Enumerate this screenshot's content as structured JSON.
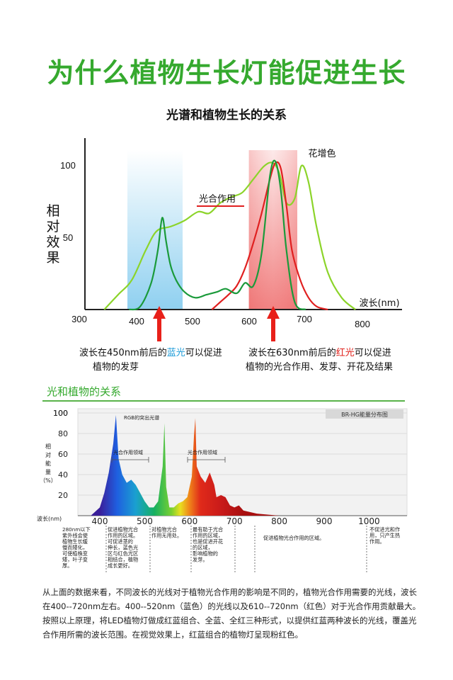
{
  "header": {
    "title": "为什么植物生长灯能促进生长",
    "chart_title": "光谱和植物生长的关系",
    "section_title": "光和植物的关系"
  },
  "chart_data": [
    {
      "type": "line",
      "title": "光谱和植物生长的关系",
      "ylabel": "相对效果",
      "xlabel": "波长(nm)",
      "x_ticks": [
        "300",
        "400",
        "500",
        "600",
        "700",
        "800"
      ],
      "y_ticks": [
        "50",
        "100"
      ],
      "xlim": [
        300,
        800
      ],
      "ylim": [
        0,
        110
      ],
      "shaded_bands": [
        {
          "name": "蓝光",
          "range": [
            400,
            500
          ],
          "color": "#8fd0f0"
        },
        {
          "name": "红光",
          "range": [
            620,
            700
          ],
          "color": "#f08080"
        }
      ],
      "series": [
        {
          "name": "光合作用",
          "color": "#e02020",
          "x": [
            530,
            545,
            560,
            575,
            590,
            605,
            620,
            635,
            645,
            655,
            665,
            675,
            690,
            705,
            720,
            740
          ],
          "y": [
            0,
            5,
            10,
            16,
            28,
            45,
            65,
            88,
            99,
            95,
            70,
            40,
            20,
            8,
            2,
            0
          ]
        },
        {
          "name": "花增色",
          "color": "#1a9a3a",
          "x": [
            380,
            400,
            420,
            432,
            440,
            447,
            455,
            465,
            480,
            500,
            520,
            540,
            555,
            575,
            590,
            605,
            620,
            635,
            645,
            655,
            665,
            680,
            700
          ],
          "y": [
            0,
            2,
            18,
            40,
            62,
            46,
            30,
            20,
            12,
            8,
            10,
            12,
            14,
            11,
            18,
            16,
            38,
            90,
            100,
            80,
            40,
            5,
            0
          ]
        }
      ],
      "extra_series": {
        "name": "",
        "color": "#8cd42a",
        "x": [
          335,
          360,
          385,
          410,
          430,
          455,
          480,
          505,
          525,
          545,
          565,
          585,
          605,
          625,
          640,
          652,
          665,
          680,
          692,
          705,
          720,
          740,
          765,
          790
        ],
        "y": [
          0,
          10,
          20,
          40,
          53,
          56,
          60,
          66,
          65,
          72,
          76,
          79,
          88,
          97,
          99,
          92,
          72,
          75,
          97,
          86,
          55,
          25,
          8,
          0
        ]
      },
      "annotations": [
        {
          "label": "光合作用"
        },
        {
          "label": "花增色"
        }
      ]
    },
    {
      "type": "area",
      "title": "BR-HG能量分布图",
      "ylabel": "相对能量(%)",
      "xlabel": "波长(nm)",
      "x_ticks": [
        "400",
        "500",
        "600",
        "700",
        "800",
        "900",
        "1000"
      ],
      "y_ticks": [
        "20",
        "40",
        "60",
        "80",
        "100"
      ],
      "xlim": [
        380,
        1100
      ],
      "ylim": [
        0,
        100
      ],
      "spectrum": {
        "x": [
          380,
          400,
          410,
          420,
          430,
          436,
          442,
          450,
          460,
          470,
          480,
          490,
          500,
          510,
          520,
          530,
          540,
          544,
          548,
          555,
          565,
          575,
          585,
          595,
          605,
          610,
          613,
          616,
          625,
          635,
          645,
          655,
          660,
          670,
          680,
          690,
          700,
          710,
          720,
          750,
          800,
          850,
          900
        ],
        "y": [
          0,
          8,
          22,
          42,
          70,
          98,
          55,
          40,
          32,
          35,
          30,
          22,
          14,
          8,
          8,
          14,
          48,
          90,
          28,
          8,
          8,
          12,
          14,
          18,
          38,
          78,
          95,
          48,
          38,
          32,
          42,
          30,
          18,
          20,
          18,
          10,
          8,
          10,
          5,
          2,
          0,
          0,
          0
        ]
      },
      "annotations": [
        {
          "label": "RGB的突出光谱"
        },
        {
          "label": "光合作用领域"
        },
        {
          "label": "光合作用领域"
        }
      ]
    }
  ],
  "labels": {
    "ylabel_chars": [
      "相",
      "对",
      "效",
      "果"
    ],
    "blue_text_pre": "波长在450nm前后的",
    "blue_text_hi": "蓝光",
    "blue_text_post": "可以促进",
    "blue_text_line2": "植物的发芽",
    "red_text_pre": "波长在630nm前后的",
    "red_text_hi": "红光",
    "red_text_post": "可以促进",
    "red_text_line2": "植物的光合作用、发芽、开花及结果",
    "chart2_ylabel_chars": [
      "相",
      "对",
      "能",
      "量",
      "（%）"
    ]
  },
  "bottom_table": [
    [
      "280nm以下",
      "紫外线会使",
      "植物生长缓",
      "慢而矮化，",
      "可使植株变",
      "矮，叶子变",
      "厚。"
    ],
    [
      "促进植物光合",
      "作用的区域。",
      "可促进茎的",
      "伸长，蓝色光",
      "区与红色光区",
      "相结合，植物",
      "成长更好。"
    ],
    [
      "对植物光合",
      "作用无用处。"
    ],
    [
      "最有助于光合",
      "作用的区域，",
      "也是促进开花",
      "的区域，",
      "影响植物的",
      "发芽。"
    ],
    [
      "促进植物光合作用的区域。"
    ],
    [
      "不促进光和作",
      "用，只产生热",
      "作用。"
    ]
  ],
  "paragraphs": [
    "从上面的数据来看，不同波长的光线对于植物光合作用的影响是不同的，植物光合作用需要的光线，波长在400--720nm左右。400--520nm（蓝色）的光线以及610--720nm（红色）对于光合作用贡献最大。",
    "按照以上原理，将LED植物灯做成红蓝组合、全蓝、全红三种形式，以提供红蓝两种波长的光线，覆盖光合作用所需的波长范围。在视觉效果上，红蓝组合的植物灯呈现粉红色。"
  ]
}
